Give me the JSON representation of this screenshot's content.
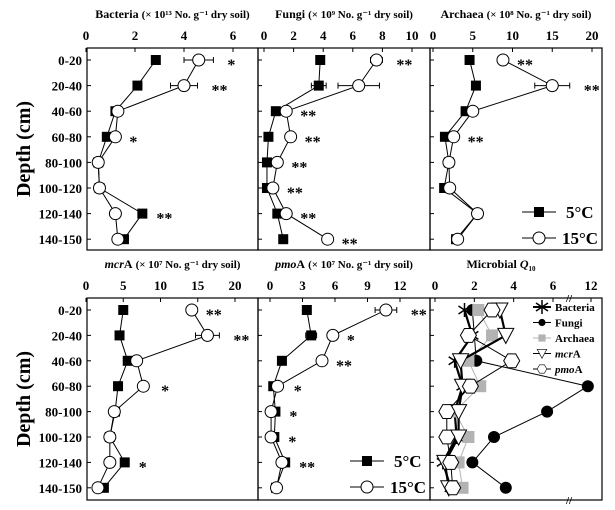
{
  "chart_data": [
    {
      "type": "line",
      "id": "bacteria",
      "title_name": "Bacteria",
      "title_italic": "",
      "title_name_rest": "",
      "title_unit": "(× 10¹³ No. g⁻¹ dry soil)",
      "xlim": [
        0,
        6
      ],
      "xticks": [
        "0",
        "2",
        "4",
        "6"
      ],
      "ylabel": "Depth (cm)",
      "depths": [
        "0-20",
        "20-40",
        "40-60",
        "60-80",
        "80-100",
        "100-120",
        "120-140",
        "140-150"
      ],
      "series": [
        {
          "name": "5°C",
          "values": [
            2.85,
            2.1,
            1.2,
            0.85,
            0.5,
            0.55,
            2.3,
            1.55
          ],
          "err": [
            0,
            0,
            0,
            0,
            0,
            0,
            0,
            0
          ]
        },
        {
          "name": "15°C",
          "values": [
            4.6,
            4.0,
            1.3,
            1.2,
            0.5,
            0.55,
            1.2,
            1.3
          ],
          "err": [
            0.6,
            0.55,
            0,
            0,
            0,
            0,
            0,
            0
          ]
        }
      ],
      "significance": [
        "*",
        "**",
        "",
        "*",
        "",
        "",
        "**",
        ""
      ]
    },
    {
      "type": "line",
      "id": "fungi",
      "title_name": "Fungi",
      "title_italic": "",
      "title_name_rest": "",
      "title_unit": "(× 10⁹ No. g⁻¹ dry soil)",
      "xlim": [
        0,
        10
      ],
      "xticks": [
        "0",
        "2",
        "4",
        "6",
        "8",
        "10"
      ],
      "depths": [
        "0-20",
        "20-40",
        "40-60",
        "60-80",
        "80-100",
        "100-120",
        "120-140",
        "140-150"
      ],
      "series": [
        {
          "name": "5°C",
          "values": [
            3.8,
            3.7,
            0.8,
            0.3,
            0.2,
            0.2,
            0.9,
            1.3
          ],
          "err": [
            0,
            0.5,
            0,
            0,
            0,
            0,
            0,
            0
          ]
        },
        {
          "name": "15°C",
          "values": [
            7.6,
            6.4,
            1.5,
            1.8,
            0.9,
            0.6,
            1.5,
            4.3
          ],
          "err": [
            0.4,
            1.4,
            0,
            0,
            0,
            0,
            0,
            0
          ]
        }
      ],
      "significance": [
        "**",
        "",
        "**",
        "**",
        "**",
        "**",
        "**",
        "**"
      ]
    },
    {
      "type": "line",
      "id": "archaea",
      "title_name": "Archaea",
      "title_italic": "",
      "title_name_rest": "",
      "title_unit": "(× 10⁸ No. g⁻¹ dry soil)",
      "xlim": [
        0,
        20
      ],
      "xticks": [
        "0",
        "5",
        "10",
        "15",
        "20"
      ],
      "depths": [
        "0-20",
        "20-40",
        "40-60",
        "60-80",
        "80-100",
        "100-120",
        "120-140",
        "140-150"
      ],
      "series": [
        {
          "name": "5°C",
          "values": [
            4.6,
            5.4,
            4.1,
            1.5,
            2.0,
            1.4,
            5.6,
            2.9
          ],
          "err": [
            0,
            0,
            0,
            0,
            0,
            0,
            0,
            0
          ]
        },
        {
          "name": "15°C",
          "values": [
            8.8,
            15,
            5.0,
            2.6,
            2.0,
            2.1,
            5.6,
            3.1
          ],
          "err": [
            0,
            2.2,
            0,
            0,
            0,
            0,
            0,
            0
          ]
        }
      ],
      "significance": [
        "**",
        "**",
        "",
        "**",
        "",
        "",
        "",
        ""
      ]
    },
    {
      "type": "line",
      "id": "mcra",
      "title_name": "",
      "title_italic": "mcr",
      "title_name_rest": "A",
      "title_unit": "(× 10⁷ No. g⁻¹ dry soil)",
      "xlim": [
        0,
        20
      ],
      "xticks": [
        "0",
        "5",
        "10",
        "15",
        "20"
      ],
      "ylabel": "Depth (cm)",
      "depths": [
        "0-20",
        "20-40",
        "40-60",
        "60-80",
        "80-100",
        "100-120",
        "120-140",
        "140-150"
      ],
      "series": [
        {
          "name": "5°C",
          "values": [
            5.0,
            4.5,
            5.6,
            4.3,
            3.9,
            3.2,
            5.2,
            2.4
          ],
          "err": [
            0.3,
            0,
            0,
            0,
            0,
            0.3,
            0,
            0
          ]
        },
        {
          "name": "15°C",
          "values": [
            14.2,
            16.3,
            6.8,
            7.7,
            3.8,
            3.2,
            3.2,
            1.6
          ],
          "err": [
            0,
            1.6,
            0,
            0.5,
            0,
            0,
            0,
            0
          ]
        }
      ],
      "significance": [
        "**",
        "**",
        "",
        "*",
        "",
        "",
        "*",
        ""
      ]
    },
    {
      "type": "line",
      "id": "pmoa",
      "title_name": "",
      "title_italic": "pmo",
      "title_name_rest": "A",
      "title_unit": "(× 10⁷ No. g⁻¹ dry soil)",
      "xlim": [
        0,
        12
      ],
      "xticks": [
        "0",
        "3",
        "6",
        "9",
        "12"
      ],
      "depths": [
        "0-20",
        "20-40",
        "40-60",
        "60-80",
        "80-100",
        "100-120",
        "120-140",
        "140-150"
      ],
      "series": [
        {
          "name": "5°C",
          "values": [
            3.4,
            3.8,
            1.1,
            0.3,
            0.5,
            0.4,
            1.4,
            0.55
          ],
          "err": [
            0,
            0.5,
            0,
            0,
            0,
            0,
            0,
            0
          ]
        },
        {
          "name": "15°C",
          "values": [
            10.7,
            5.8,
            4.8,
            0.7,
            0.1,
            0.1,
            1.1,
            0.6
          ],
          "err": [
            1.0,
            0,
            0,
            0.2,
            0,
            0,
            0,
            0
          ]
        }
      ],
      "significance": [
        "**",
        "*",
        "**",
        "*",
        "*",
        "*",
        "**",
        ""
      ]
    },
    {
      "type": "line",
      "id": "q10",
      "title_name": "Microbial ",
      "title_italic": "Q",
      "title_sub": "10",
      "title_unit": "",
      "xlim": [
        0,
        12
      ],
      "xticks": [
        "0",
        "2",
        "4",
        "6",
        "12"
      ],
      "axis_break": [
        6,
        12
      ],
      "depths": [
        "0-20",
        "20-40",
        "40-60",
        "60-80",
        "80-100",
        "100-120",
        "120-140",
        "140-150"
      ],
      "series": [
        {
          "name": "Bacteria",
          "marker": "star",
          "color": "#000000",
          "values": [
            1.5,
            1.9,
            1.0,
            1.4,
            1.0,
            1.1,
            0.4,
            0.8
          ]
        },
        {
          "name": "Fungi",
          "marker": "dot",
          "color": "#000000",
          "values": [
            1.9,
            null,
            2.1,
            11.5,
            5.7,
            3.0,
            1.9,
            3.6
          ]
        },
        {
          "name": "Archaea",
          "marker": "square",
          "color": "#b3b3b3",
          "values": [
            2.2,
            2.9,
            1.7,
            2.3,
            1.0,
            1.7,
            1.2,
            1.4
          ]
        },
        {
          "name": "mcrA",
          "italic": "mcr",
          "rest": "A",
          "marker": "triangle",
          "color": "#000000",
          "values": [
            3.3,
            3.6,
            1.3,
            1.4,
            1.2,
            1.2,
            0.5,
            0.7
          ]
        },
        {
          "name": "pmoA",
          "italic": "pmo",
          "rest": "A",
          "marker": "hexagon",
          "color": "#000000",
          "values": [
            2.9,
            1.7,
            3.9,
            1.8,
            0.6,
            0.6,
            0.8,
            0.9
          ]
        }
      ]
    }
  ],
  "legend": {
    "cold": "5°C",
    "warm": "15°C"
  },
  "ylabel": "Depth (cm)"
}
